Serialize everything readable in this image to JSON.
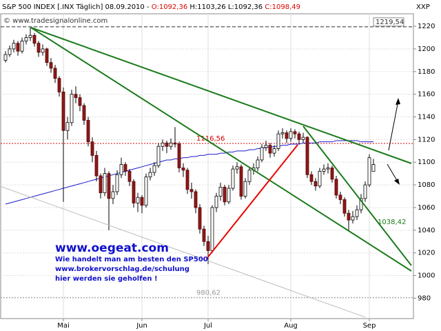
{
  "chart_data": {
    "type": "candlestick",
    "header": {
      "symbol": "S&P 500 INDEX [.INX Täglich] 08.09.2010 -",
      "open": "O:1092,36",
      "high": "H:1103,26",
      "low": "L:1092,36",
      "close": "C:1098,49"
    },
    "watermark": "© www.tradesignalonline.com",
    "symbol_code": "XXP",
    "promo": [
      "www.oegeat.com",
      "Wie handelt man am besten den SP500",
      "www.brokervorschlag.de/schulung",
      "hier werden sie geholfen !"
    ],
    "channel_label": "1038,42",
    "levels": [
      {
        "value": 1219.54,
        "label": "1219,54",
        "color": "#333333"
      },
      {
        "value": 1116.56,
        "label": "1116,56",
        "color": "#dd0000"
      },
      {
        "value": 980.62,
        "label": "980,62",
        "color": "#999999"
      }
    ],
    "categories": [
      null,
      null,
      null,
      null,
      null,
      null,
      null,
      null,
      null,
      null,
      null,
      null,
      null,
      null,
      "Mai",
      null,
      null,
      null,
      null,
      null,
      null,
      null,
      null,
      null,
      null,
      null,
      null,
      null,
      null,
      null,
      null,
      null,
      null,
      "Jun",
      null,
      null,
      null,
      null,
      null,
      null,
      null,
      null,
      null,
      null,
      null,
      null,
      null,
      null,
      null,
      "Jul",
      null,
      null,
      null,
      null,
      null,
      null,
      null,
      null,
      null,
      null,
      null,
      null,
      null,
      null,
      null,
      null,
      null,
      null,
      null,
      "Aug",
      null,
      null,
      null,
      null,
      null,
      null,
      null,
      null,
      null,
      null,
      null,
      null,
      null,
      null,
      null,
      null,
      null,
      null,
      "Sep",
      null
    ],
    "ohlc": [
      [
        1190,
        1198,
        1188,
        1195
      ],
      [
        1195,
        1203,
        1193,
        1200
      ],
      [
        1200,
        1208,
        1197,
        1205
      ],
      [
        1205,
        1207,
        1194,
        1198
      ],
      [
        1198,
        1210,
        1196,
        1207
      ],
      [
        1207,
        1213,
        1204,
        1210
      ],
      [
        1210,
        1219,
        1207,
        1212
      ],
      [
        1212,
        1214,
        1202,
        1205
      ],
      [
        1205,
        1207,
        1193,
        1197
      ],
      [
        1197,
        1204,
        1194,
        1200
      ],
      [
        1200,
        1201,
        1185,
        1188
      ],
      [
        1188,
        1192,
        1179,
        1183
      ],
      [
        1183,
        1186,
        1170,
        1174
      ],
      [
        1174,
        1176,
        1158,
        1162
      ],
      [
        1162,
        1166,
        1065,
        1128
      ],
      [
        1128,
        1140,
        1120,
        1135
      ],
      [
        1135,
        1164,
        1132,
        1160
      ],
      [
        1160,
        1167,
        1152,
        1157
      ],
      [
        1157,
        1160,
        1145,
        1150
      ],
      [
        1150,
        1152,
        1133,
        1137
      ],
      [
        1137,
        1140,
        1114,
        1118
      ],
      [
        1118,
        1122,
        1100,
        1106
      ],
      [
        1106,
        1110,
        1083,
        1088
      ],
      [
        1088,
        1090,
        1068,
        1073
      ],
      [
        1073,
        1095,
        1070,
        1090
      ],
      [
        1090,
        1092,
        1040,
        1068
      ],
      [
        1068,
        1080,
        1063,
        1074
      ],
      [
        1074,
        1093,
        1071,
        1089
      ],
      [
        1089,
        1104,
        1086,
        1098
      ],
      [
        1098,
        1100,
        1088,
        1092
      ],
      [
        1092,
        1094,
        1079,
        1083
      ],
      [
        1083,
        1085,
        1060,
        1064
      ],
      [
        1064,
        1073,
        1056,
        1069
      ],
      [
        1069,
        1071,
        1055,
        1062
      ],
      [
        1062,
        1090,
        1060,
        1087
      ],
      [
        1087,
        1095,
        1084,
        1091
      ],
      [
        1091,
        1100,
        1088,
        1097
      ],
      [
        1097,
        1117,
        1095,
        1114
      ],
      [
        1114,
        1120,
        1110,
        1117
      ],
      [
        1117,
        1119,
        1108,
        1114
      ],
      [
        1114,
        1121,
        1111,
        1117
      ],
      [
        1117,
        1131,
        1113,
        1116
      ],
      [
        1116,
        1118,
        1091,
        1095
      ],
      [
        1095,
        1099,
        1087,
        1093
      ],
      [
        1093,
        1095,
        1072,
        1076
      ],
      [
        1076,
        1082,
        1068,
        1074
      ],
      [
        1074,
        1076,
        1055,
        1060
      ],
      [
        1060,
        1063,
        1037,
        1041
      ],
      [
        1041,
        1044,
        1026,
        1030
      ],
      [
        1030,
        1035,
        1010,
        1022
      ],
      [
        1022,
        1062,
        1020,
        1060
      ],
      [
        1060,
        1073,
        1056,
        1070
      ],
      [
        1070,
        1082,
        1066,
        1078
      ],
      [
        1078,
        1080,
        1062,
        1065
      ],
      [
        1065,
        1080,
        1063,
        1077
      ],
      [
        1077,
        1097,
        1075,
        1094
      ],
      [
        1094,
        1100,
        1090,
        1096
      ],
      [
        1096,
        1098,
        1067,
        1070
      ],
      [
        1070,
        1086,
        1068,
        1083
      ],
      [
        1083,
        1096,
        1080,
        1093
      ],
      [
        1093,
        1099,
        1089,
        1095
      ],
      [
        1095,
        1105,
        1092,
        1102
      ],
      [
        1102,
        1116,
        1100,
        1113
      ],
      [
        1113,
        1119,
        1110,
        1115
      ],
      [
        1115,
        1117,
        1104,
        1108
      ],
      [
        1108,
        1115,
        1105,
        1112
      ],
      [
        1112,
        1128,
        1110,
        1125
      ],
      [
        1125,
        1130,
        1121,
        1126
      ],
      [
        1126,
        1128,
        1117,
        1121
      ],
      [
        1121,
        1130,
        1118,
        1127
      ],
      [
        1127,
        1129,
        1121,
        1125
      ],
      [
        1125,
        1127,
        1116,
        1120
      ],
      [
        1120,
        1126,
        1117,
        1122
      ],
      [
        1122,
        1123,
        1086,
        1089
      ],
      [
        1089,
        1092,
        1080,
        1083
      ],
      [
        1083,
        1086,
        1075,
        1079
      ],
      [
        1079,
        1095,
        1077,
        1092
      ],
      [
        1092,
        1098,
        1089,
        1094
      ],
      [
        1094,
        1099,
        1090,
        1095
      ],
      [
        1095,
        1097,
        1082,
        1085
      ],
      [
        1085,
        1088,
        1068,
        1071
      ],
      [
        1071,
        1074,
        1063,
        1067
      ],
      [
        1067,
        1069,
        1052,
        1055
      ],
      [
        1055,
        1058,
        1040,
        1049
      ],
      [
        1049,
        1057,
        1046,
        1052
      ],
      [
        1052,
        1062,
        1049,
        1058
      ],
      [
        1058,
        1072,
        1055,
        1068
      ],
      [
        1068,
        1083,
        1065,
        1080
      ],
      [
        1080,
        1107,
        1078,
        1104
      ],
      [
        1092,
        1103,
        1092,
        1098
      ]
    ],
    "up_color": "#ffffff",
    "down_color": "#8b1a1a",
    "ma": {
      "color": "#1a1acc",
      "values": [
        1063,
        1064,
        1065,
        1066,
        1067,
        1068,
        1069,
        1070,
        1071,
        1072,
        1073,
        1074,
        1075,
        1076,
        1077,
        1078,
        1079,
        1080,
        1081,
        1082,
        1083,
        1084,
        1085,
        1086,
        1087,
        1088,
        1089,
        1090,
        1091,
        1092,
        1093,
        1094,
        1095,
        1096,
        1097,
        1098,
        1099,
        1100,
        1101,
        1102,
        1102,
        1103,
        1103,
        1104,
        1104,
        1105,
        1105,
        1106,
        1106,
        1107,
        1107,
        1107,
        1108,
        1108,
        1109,
        1109,
        1110,
        1110,
        1110,
        1111,
        1111,
        1112,
        1112,
        1113,
        1113,
        1114,
        1114,
        1115,
        1115,
        1116,
        1116,
        1116,
        1117,
        1117,
        1117,
        1117,
        1118,
        1118,
        1118,
        1118,
        1119,
        1119,
        1119,
        1119,
        1119,
        1119,
        1118,
        1118,
        1118,
        1118
      ]
    },
    "ylim": [
      962,
      1231
    ],
    "yticks": [
      980,
      1000,
      1020,
      1040,
      1060,
      1080,
      1100,
      1120,
      1140,
      1160,
      1180,
      1200,
      1220
    ],
    "grid": true
  }
}
